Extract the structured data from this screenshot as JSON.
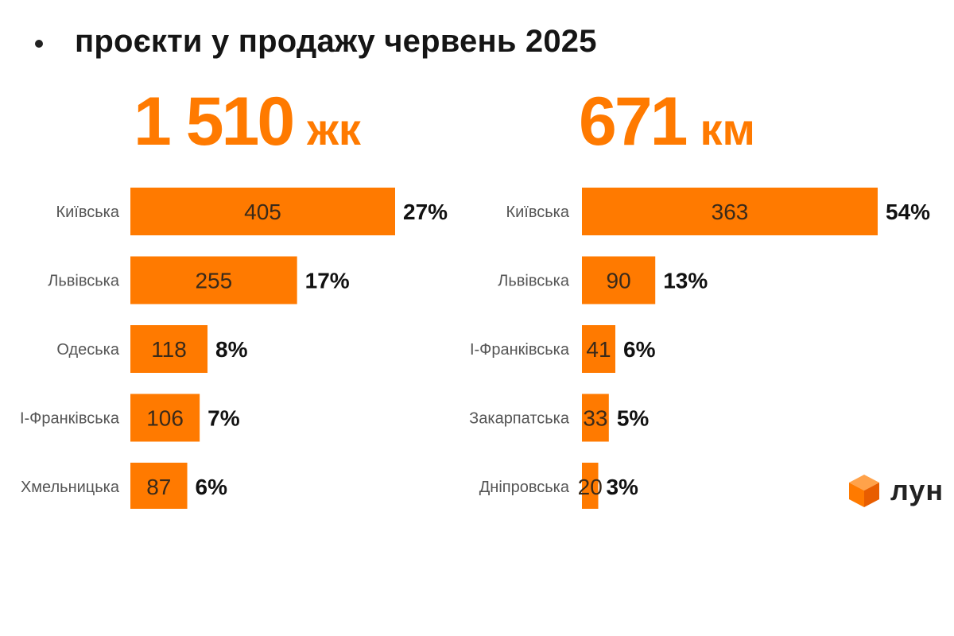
{
  "title": "проєкти у продажу червень 2025",
  "brand": {
    "name": "лун",
    "accent": "#ff7a00",
    "icon": "cube-icon"
  },
  "chart_data": [
    {
      "type": "bar",
      "orientation": "horizontal",
      "headline_value": "1 510",
      "headline_unit": "жк",
      "categories": [
        "Київська",
        "Львівська",
        "Одеська",
        "І-Франківська",
        "Хмельницька"
      ],
      "values": [
        405,
        255,
        118,
        106,
        87
      ],
      "percent_labels": [
        "27%",
        "17%",
        "8%",
        "7%",
        "6%"
      ],
      "color": "#ff7a00"
    },
    {
      "type": "bar",
      "orientation": "horizontal",
      "headline_value": "671",
      "headline_unit": "км",
      "categories": [
        "Київська",
        "Львівська",
        "І-Франківська",
        "Закарпатська",
        "Дніпровська"
      ],
      "values": [
        363,
        90,
        41,
        33,
        20
      ],
      "percent_labels": [
        "54%",
        "13%",
        "6%",
        "5%",
        "3%"
      ],
      "color": "#ff7a00"
    }
  ]
}
